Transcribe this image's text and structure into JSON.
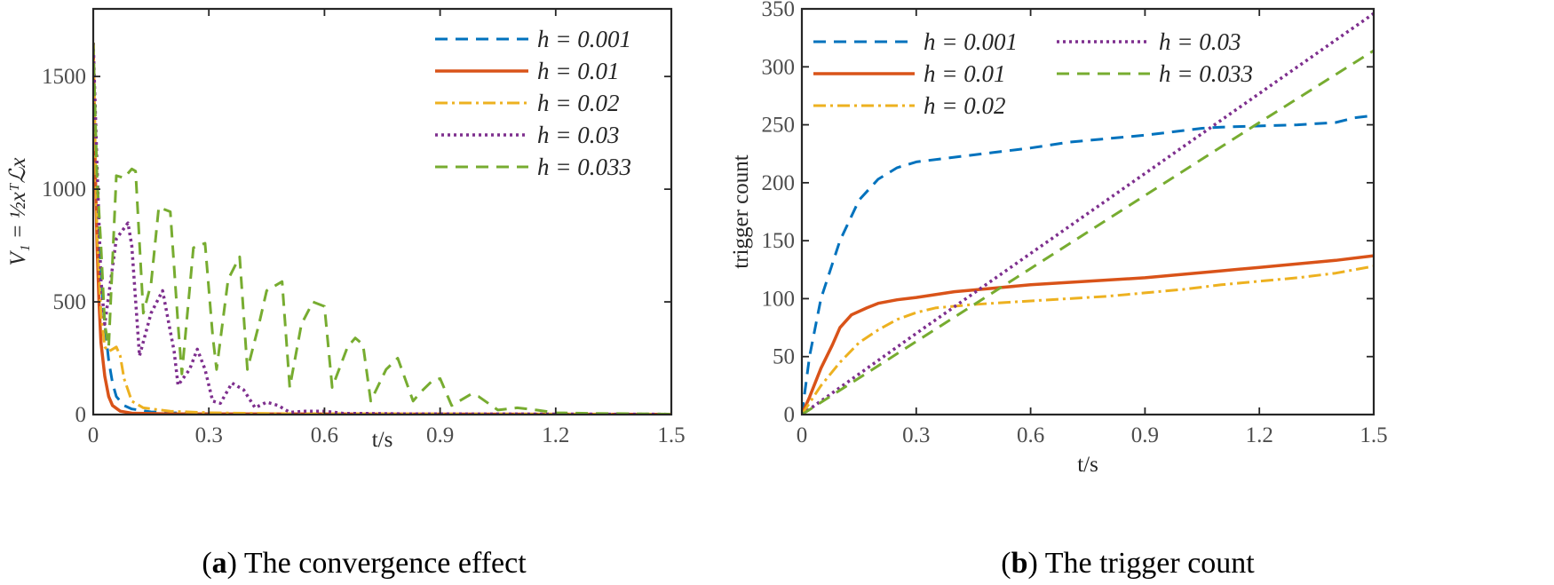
{
  "chart_data": [
    {
      "type": "line",
      "caption_letter": "a",
      "caption_text": "The convergence effect",
      "xlabel": "t/s",
      "ylabel": "V₁ = ½xᵀℒx",
      "xlim": [
        0,
        1.5
      ],
      "ylim": [
        0,
        1800
      ],
      "xticks": [
        "0",
        "0.3",
        "0.6",
        "0.9",
        "1.2",
        "1.5"
      ],
      "xtick_values": [
        0,
        0.3,
        0.6,
        0.9,
        1.2,
        1.5
      ],
      "yticks": [
        "0",
        "500",
        "1000",
        "1500"
      ],
      "ytick_values": [
        0,
        500,
        1000,
        1500
      ],
      "legend_position": "top-right",
      "series": [
        {
          "name": "h = 0.001",
          "color": "#0072BD",
          "dash": "14 9",
          "width": 3,
          "points": [
            [
              0,
              1650
            ],
            [
              0.005,
              1200
            ],
            [
              0.01,
              900
            ],
            [
              0.02,
              600
            ],
            [
              0.03,
              400
            ],
            [
              0.04,
              240
            ],
            [
              0.05,
              140
            ],
            [
              0.06,
              80
            ],
            [
              0.08,
              40
            ],
            [
              0.1,
              25
            ],
            [
              0.15,
              12
            ],
            [
              0.2,
              8
            ],
            [
              0.3,
              4
            ],
            [
              0.6,
              2
            ],
            [
              1.5,
              1
            ]
          ]
        },
        {
          "name": "h = 0.01",
          "color": "#D95319",
          "dash": "",
          "width": 3.5,
          "points": [
            [
              0,
              1650
            ],
            [
              0.005,
              1100
            ],
            [
              0.01,
              750
            ],
            [
              0.015,
              500
            ],
            [
              0.02,
              320
            ],
            [
              0.03,
              170
            ],
            [
              0.04,
              80
            ],
            [
              0.05,
              40
            ],
            [
              0.07,
              15
            ],
            [
              0.1,
              6
            ],
            [
              0.2,
              3
            ],
            [
              1.5,
              1
            ]
          ]
        },
        {
          "name": "h = 0.02",
          "color": "#EDB120",
          "dash": "14 5 3 5",
          "width": 3,
          "points": [
            [
              0,
              1650
            ],
            [
              0.005,
              1200
            ],
            [
              0.01,
              800
            ],
            [
              0.02,
              450
            ],
            [
              0.03,
              300
            ],
            [
              0.04,
              280
            ],
            [
              0.05,
              290
            ],
            [
              0.06,
              300
            ],
            [
              0.07,
              260
            ],
            [
              0.08,
              160
            ],
            [
              0.1,
              60
            ],
            [
              0.13,
              30
            ],
            [
              0.2,
              15
            ],
            [
              0.3,
              8
            ],
            [
              0.5,
              4
            ],
            [
              1.5,
              1
            ]
          ]
        },
        {
          "name": "h = 0.03",
          "color": "#7E2F8E",
          "dash": "3 4",
          "width": 3.5,
          "points": [
            [
              0,
              1650
            ],
            [
              0.01,
              1100
            ],
            [
              0.02,
              600
            ],
            [
              0.03,
              400
            ],
            [
              0.06,
              780
            ],
            [
              0.09,
              850
            ],
            [
              0.1,
              750
            ],
            [
              0.12,
              260
            ],
            [
              0.15,
              450
            ],
            [
              0.18,
              550
            ],
            [
              0.21,
              280
            ],
            [
              0.22,
              130
            ],
            [
              0.25,
              200
            ],
            [
              0.27,
              290
            ],
            [
              0.29,
              200
            ],
            [
              0.31,
              60
            ],
            [
              0.33,
              50
            ],
            [
              0.36,
              140
            ],
            [
              0.39,
              110
            ],
            [
              0.42,
              30
            ],
            [
              0.45,
              55
            ],
            [
              0.48,
              40
            ],
            [
              0.51,
              10
            ],
            [
              0.55,
              15
            ],
            [
              0.6,
              15
            ],
            [
              0.65,
              5
            ],
            [
              0.7,
              5
            ],
            [
              0.8,
              3
            ],
            [
              1.5,
              1
            ]
          ]
        },
        {
          "name": "h = 0.033",
          "color": "#77AC30",
          "dash": "14 9",
          "width": 3,
          "points": [
            [
              0,
              1650
            ],
            [
              0.01,
              1050
            ],
            [
              0.02,
              750
            ],
            [
              0.03,
              400
            ],
            [
              0.04,
              300
            ],
            [
              0.06,
              1060
            ],
            [
              0.08,
              1050
            ],
            [
              0.1,
              1090
            ],
            [
              0.11,
              1080
            ],
            [
              0.13,
              450
            ],
            [
              0.15,
              580
            ],
            [
              0.17,
              920
            ],
            [
              0.2,
              900
            ],
            [
              0.22,
              400
            ],
            [
              0.23,
              180
            ],
            [
              0.26,
              740
            ],
            [
              0.29,
              760
            ],
            [
              0.31,
              350
            ],
            [
              0.32,
              200
            ],
            [
              0.35,
              600
            ],
            [
              0.38,
              700
            ],
            [
              0.4,
              200
            ],
            [
              0.43,
              400
            ],
            [
              0.45,
              550
            ],
            [
              0.49,
              590
            ],
            [
              0.51,
              120
            ],
            [
              0.54,
              400
            ],
            [
              0.57,
              500
            ],
            [
              0.6,
              480
            ],
            [
              0.62,
              120
            ],
            [
              0.66,
              300
            ],
            [
              0.68,
              340
            ],
            [
              0.7,
              310
            ],
            [
              0.72,
              60
            ],
            [
              0.76,
              200
            ],
            [
              0.79,
              250
            ],
            [
              0.83,
              60
            ],
            [
              0.85,
              100
            ],
            [
              0.88,
              150
            ],
            [
              0.9,
              160
            ],
            [
              0.93,
              40
            ],
            [
              0.98,
              90
            ],
            [
              1.0,
              80
            ],
            [
              1.05,
              20
            ],
            [
              1.1,
              30
            ],
            [
              1.15,
              20
            ],
            [
              1.2,
              8
            ],
            [
              1.3,
              5
            ],
            [
              1.5,
              2
            ]
          ]
        }
      ]
    },
    {
      "type": "line",
      "caption_letter": "b",
      "caption_text": "The trigger count",
      "xlabel": "t/s",
      "ylabel": "trigger count",
      "xlim": [
        0,
        1.5
      ],
      "ylim": [
        0,
        350
      ],
      "xticks": [
        "0",
        "0.3",
        "0.6",
        "0.9",
        "1.2",
        "1.5"
      ],
      "xtick_values": [
        0,
        0.3,
        0.6,
        0.9,
        1.2,
        1.5
      ],
      "yticks": [
        "0",
        "50",
        "100",
        "150",
        "200",
        "250",
        "300",
        "350"
      ],
      "ytick_values": [
        0,
        50,
        100,
        150,
        200,
        250,
        300,
        350
      ],
      "legend_position": "top-left",
      "series": [
        {
          "name": "h = 0.001",
          "color": "#0072BD",
          "dash": "14 9",
          "width": 3,
          "points": [
            [
              0,
              0
            ],
            [
              0.02,
              50
            ],
            [
              0.05,
              100
            ],
            [
              0.1,
              150
            ],
            [
              0.15,
              185
            ],
            [
              0.2,
              203
            ],
            [
              0.25,
              213
            ],
            [
              0.3,
              218
            ],
            [
              0.4,
              222
            ],
            [
              0.5,
              226
            ],
            [
              0.6,
              230
            ],
            [
              0.7,
              235
            ],
            [
              0.8,
              238
            ],
            [
              0.9,
              241
            ],
            [
              1.0,
              245
            ],
            [
              1.05,
              247
            ],
            [
              1.1,
              248
            ],
            [
              1.2,
              249
            ],
            [
              1.3,
              250
            ],
            [
              1.4,
              252
            ],
            [
              1.45,
              256
            ],
            [
              1.5,
              258
            ]
          ]
        },
        {
          "name": "h = 0.01",
          "color": "#D95319",
          "dash": "",
          "width": 3.5,
          "points": [
            [
              0,
              0
            ],
            [
              0.02,
              15
            ],
            [
              0.05,
              40
            ],
            [
              0.08,
              60
            ],
            [
              0.1,
              75
            ],
            [
              0.13,
              86
            ],
            [
              0.17,
              92
            ],
            [
              0.2,
              96
            ],
            [
              0.25,
              99
            ],
            [
              0.3,
              101
            ],
            [
              0.4,
              106
            ],
            [
              0.5,
              109
            ],
            [
              0.6,
              112
            ],
            [
              0.7,
              114
            ],
            [
              0.8,
              116
            ],
            [
              0.9,
              118
            ],
            [
              1.0,
              121
            ],
            [
              1.1,
              124
            ],
            [
              1.2,
              127
            ],
            [
              1.3,
              130
            ],
            [
              1.4,
              133
            ],
            [
              1.5,
              137
            ]
          ]
        },
        {
          "name": "h = 0.02",
          "color": "#EDB120",
          "dash": "14 5 3 5",
          "width": 3,
          "points": [
            [
              0,
              0
            ],
            [
              0.05,
              25
            ],
            [
              0.1,
              45
            ],
            [
              0.15,
              62
            ],
            [
              0.2,
              73
            ],
            [
              0.25,
              82
            ],
            [
              0.3,
              88
            ],
            [
              0.35,
              92
            ],
            [
              0.45,
              95
            ],
            [
              0.55,
              97
            ],
            [
              0.7,
              100
            ],
            [
              0.8,
              102
            ],
            [
              0.9,
              105
            ],
            [
              1.0,
              108
            ],
            [
              1.1,
              112
            ],
            [
              1.2,
              115
            ],
            [
              1.3,
              118
            ],
            [
              1.4,
              122
            ],
            [
              1.5,
              128
            ]
          ]
        },
        {
          "name": "h = 0.03",
          "color": "#7E2F8E",
          "dash": "3 4",
          "width": 3.5,
          "points": [
            [
              0,
              0
            ],
            [
              0.3,
              70
            ],
            [
              0.6,
              139
            ],
            [
              0.9,
              208
            ],
            [
              1.2,
              277
            ],
            [
              1.5,
              346
            ]
          ]
        },
        {
          "name": "h = 0.033",
          "color": "#77AC30",
          "dash": "14 9",
          "width": 3,
          "points": [
            [
              0,
              0
            ],
            [
              0.3,
              63
            ],
            [
              0.6,
              126
            ],
            [
              0.9,
              189
            ],
            [
              1.2,
              252
            ],
            [
              1.5,
              314
            ]
          ]
        }
      ]
    }
  ]
}
